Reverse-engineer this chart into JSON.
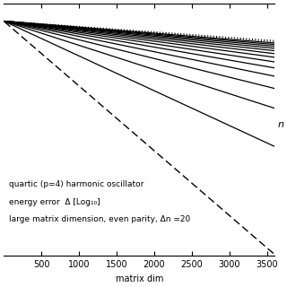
{
  "title": "",
  "xlabel": "matrix dim",
  "ylabel": "",
  "annotation_lines": [
    "quartic (p=4) harmonic oscillator",
    "energy error  Δ [Log₁₀]",
    "large matrix dimension, even parity, Δn =20"
  ],
  "x_min": 0,
  "x_max": 3600,
  "y_min": -14,
  "y_max": 2,
  "xticks": [
    500,
    1000,
    1500,
    2000,
    2500,
    3000,
    3500
  ],
  "n_solid_lines": 13,
  "n_dotted_lines": 2,
  "background_color": "#ffffff",
  "line_color": "#000000",
  "font_size": 7,
  "right_label": "n"
}
